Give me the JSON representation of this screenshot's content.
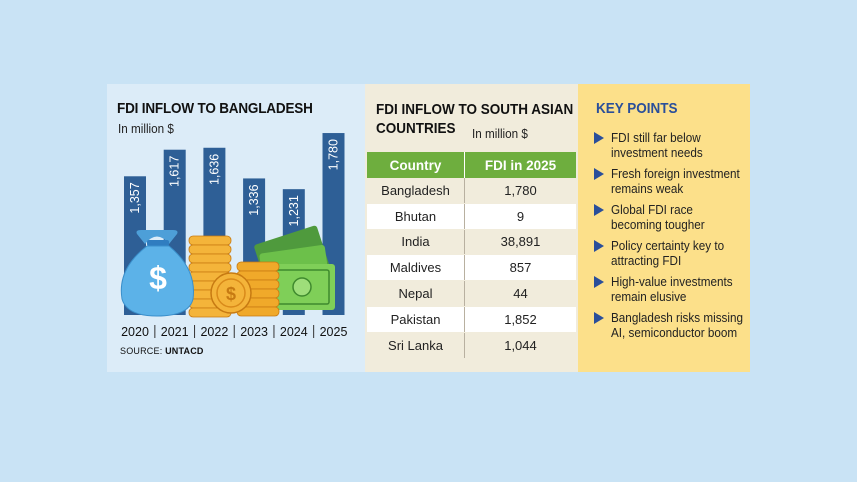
{
  "panel1": {
    "title": "FDI INFLOW TO BANGLADESH",
    "unit": "In million $",
    "source_label": "SOURCE:",
    "source_value": "UNTACD"
  },
  "chart_data": {
    "type": "bar",
    "title": "FDI INFLOW TO BANGLADESH",
    "ylabel": "In million $",
    "categories": [
      "2020",
      "2021",
      "2022",
      "2023",
      "2024",
      "2025"
    ],
    "values": [
      1357,
      1617,
      1636,
      1336,
      1231,
      1780
    ],
    "value_labels": [
      "1,357",
      "1,617",
      "1,636",
      "1,336",
      "1,231",
      "1,780"
    ],
    "ylim": [
      0,
      1800
    ],
    "bar_color": "#2e5f96",
    "grid": false
  },
  "panel2": {
    "title": "FDI INFLOW TO SOUTH ASIAN COUNTRIES",
    "unit": "In million $",
    "header_color": "#6eae3e",
    "columns": [
      "Country",
      "FDI in 2025"
    ],
    "rows": [
      {
        "country": "Bangladesh",
        "value": "1,780"
      },
      {
        "country": "Bhutan",
        "value": "9"
      },
      {
        "country": "India",
        "value": "38,891"
      },
      {
        "country": "Maldives",
        "value": "857"
      },
      {
        "country": "Nepal",
        "value": "44"
      },
      {
        "country": "Pakistan",
        "value": "1,852"
      },
      {
        "country": "Sri Lanka",
        "value": "1,044"
      }
    ]
  },
  "panel3": {
    "title": "KEY POINTS",
    "accent_color": "#2a4f9a",
    "points": [
      "FDI still far below investment needs",
      "Fresh foreign investment remains weak",
      "Global FDI race becoming tougher",
      "Policy certainty key to attracting FDI",
      "High-value investments remain elusive",
      "Bangladesh risks missing AI, semiconductor boom"
    ]
  }
}
